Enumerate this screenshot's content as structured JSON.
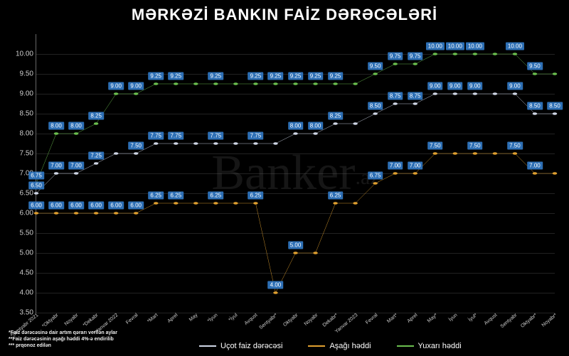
{
  "title": "MƏRKƏZİ BANKIN FAİZ DƏRƏCƏLƏRİ",
  "type": "line",
  "background_color": "#000000",
  "text_color": "#ffffff",
  "grid_color": "#222222",
  "axis_color": "#666666",
  "label_bg_color": "#2d6fb5",
  "title_fontsize": 22,
  "ylim": [
    3.5,
    10.5
  ],
  "ytick_step": 0.5,
  "yticks": [
    "3.50",
    "4.00",
    "4.50",
    "5.00",
    "5.50",
    "6.00",
    "6.50",
    "7.00",
    "7.50",
    "8.00",
    "8.50",
    "9.00",
    "9.50",
    "10.00"
  ],
  "categories": [
    "*Sentyabr 2021",
    "*Oktyabr",
    "Noyabr",
    "*Dekabr",
    "*Yanvar 2022",
    "Fevral",
    "*Mart",
    "Aprel",
    "May",
    "*İyun",
    "*İyul",
    "Avqust",
    "Sentyabr*",
    "Oktyabr",
    "Noyabr",
    "Dekabr*",
    "Yanvar 2023",
    "Fevral",
    "Mart*",
    "Aprel",
    "May*",
    "İyun",
    "İyul*",
    "Avqust",
    "Sentyabr",
    "Oktyabr*",
    "Noyabr*"
  ],
  "series": [
    {
      "name": "Uçot faiz dərəcəsi",
      "color": "#cfd6e6",
      "line_width": 2,
      "values": [
        6.5,
        7.0,
        7.0,
        7.25,
        7.5,
        7.5,
        7.75,
        7.75,
        7.75,
        7.75,
        7.75,
        7.75,
        7.75,
        8.0,
        8.0,
        8.25,
        8.25,
        8.5,
        8.75,
        8.75,
        9.0,
        9.0,
        9.0,
        9.0,
        9.0,
        8.5,
        8.5
      ],
      "label_skip": [
        4,
        8,
        10,
        12,
        16,
        23
      ]
    },
    {
      "name": "Aşağı həddi",
      "color": "#e0a030",
      "line_width": 2,
      "values": [
        6.0,
        6.0,
        6.0,
        6.0,
        6.0,
        6.0,
        6.25,
        6.25,
        6.25,
        6.25,
        6.25,
        6.25,
        4.0,
        5.0,
        5.0,
        6.25,
        6.25,
        6.75,
        7.0,
        7.0,
        7.5,
        7.5,
        7.5,
        7.5,
        7.5,
        7.0,
        7.0
      ],
      "label_skip": [
        8,
        10,
        14,
        16,
        21,
        23,
        26
      ]
    },
    {
      "name": "Yuxarı həddi",
      "color": "#6bbf4f",
      "line_width": 2,
      "values": [
        6.75,
        8.0,
        8.0,
        8.25,
        9.0,
        9.0,
        9.25,
        9.25,
        9.25,
        9.25,
        9.25,
        9.25,
        9.25,
        9.25,
        9.25,
        9.25,
        9.25,
        9.5,
        9.75,
        9.75,
        10.0,
        10.0,
        10.0,
        10.0,
        10.0,
        9.5,
        9.5
      ],
      "label_skip": [
        8,
        10,
        16,
        23,
        26
      ]
    }
  ],
  "footnotes": [
    "*Faiz dərəcəsinə dair artım qərarı verilən aylar",
    "**Faiz dərəcəsinin aşağı həddi 4%-ə endirilib",
    "*** prqonoz edilən"
  ],
  "legend_labels": [
    "Uçot faiz dərəcəsi",
    "Aşağı həddi",
    "Yuxarı həddi"
  ],
  "watermark": "Banker",
  "watermark_suffix": ".az"
}
